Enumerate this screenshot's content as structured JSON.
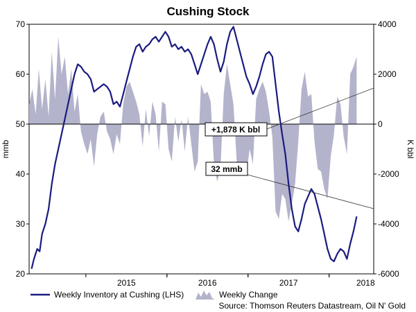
{
  "chart_data": {
    "type": "line",
    "title": "Cushing Stock",
    "left_axis": {
      "label": "mmb",
      "range": [
        20,
        70
      ],
      "ticks": [
        "20",
        "30",
        "40",
        "50",
        "60",
        "70"
      ]
    },
    "right_axis": {
      "label": "K bbl",
      "range": [
        -6000,
        4000
      ],
      "ticks": [
        "-6000",
        "-4000",
        "-2000",
        "0",
        "2000",
        "4000"
      ]
    },
    "x_axis": {
      "labels": [
        "2015",
        "2016",
        "2017",
        "2018"
      ],
      "range_years": [
        2014.3,
        2018.55
      ]
    },
    "series": [
      {
        "name": "Weekly Inventory at Cushing (LHS)",
        "axis": "left",
        "color": "#1a1a80",
        "points": [
          [
            2014.33,
            21.0
          ],
          [
            2014.36,
            23.0
          ],
          [
            2014.4,
            25.0
          ],
          [
            2014.43,
            24.5
          ],
          [
            2014.46,
            28.0
          ],
          [
            2014.5,
            30.0
          ],
          [
            2014.54,
            33.0
          ],
          [
            2014.58,
            38.0
          ],
          [
            2014.62,
            42.0
          ],
          [
            2014.66,
            45.0
          ],
          [
            2014.7,
            48.0
          ],
          [
            2014.74,
            51.0
          ],
          [
            2014.78,
            54.0
          ],
          [
            2014.82,
            57.0
          ],
          [
            2014.86,
            60.0
          ],
          [
            2014.9,
            62.0
          ],
          [
            2014.94,
            61.5
          ],
          [
            2014.98,
            60.5
          ],
          [
            2015.02,
            60.0
          ],
          [
            2015.06,
            59.0
          ],
          [
            2015.1,
            56.5
          ],
          [
            2015.14,
            57.0
          ],
          [
            2015.18,
            57.5
          ],
          [
            2015.22,
            58.0
          ],
          [
            2015.26,
            57.5
          ],
          [
            2015.3,
            56.5
          ],
          [
            2015.34,
            54.0
          ],
          [
            2015.38,
            54.5
          ],
          [
            2015.42,
            53.5
          ],
          [
            2015.46,
            56.0
          ],
          [
            2015.5,
            58.5
          ],
          [
            2015.54,
            61.0
          ],
          [
            2015.58,
            63.5
          ],
          [
            2015.62,
            65.5
          ],
          [
            2015.66,
            66.0
          ],
          [
            2015.7,
            64.5
          ],
          [
            2015.74,
            65.5
          ],
          [
            2015.78,
            66.0
          ],
          [
            2015.82,
            67.0
          ],
          [
            2015.86,
            67.5
          ],
          [
            2015.9,
            66.5
          ],
          [
            2015.94,
            67.5
          ],
          [
            2015.98,
            68.5
          ],
          [
            2016.02,
            67.5
          ],
          [
            2016.06,
            65.5
          ],
          [
            2016.1,
            66.0
          ],
          [
            2016.14,
            65.0
          ],
          [
            2016.18,
            65.5
          ],
          [
            2016.22,
            64.5
          ],
          [
            2016.26,
            65.0
          ],
          [
            2016.3,
            64.0
          ],
          [
            2016.34,
            62.0
          ],
          [
            2016.38,
            60.0
          ],
          [
            2016.42,
            62.0
          ],
          [
            2016.46,
            64.0
          ],
          [
            2016.5,
            66.0
          ],
          [
            2016.54,
            67.5
          ],
          [
            2016.58,
            66.0
          ],
          [
            2016.62,
            63.0
          ],
          [
            2016.66,
            60.5
          ],
          [
            2016.7,
            62.5
          ],
          [
            2016.74,
            66.0
          ],
          [
            2016.78,
            68.5
          ],
          [
            2016.82,
            69.5
          ],
          [
            2016.86,
            67.0
          ],
          [
            2016.9,
            64.5
          ],
          [
            2016.94,
            62.0
          ],
          [
            2016.98,
            59.5
          ],
          [
            2017.02,
            58.0
          ],
          [
            2017.06,
            56.0
          ],
          [
            2017.1,
            57.5
          ],
          [
            2017.14,
            59.5
          ],
          [
            2017.18,
            62.0
          ],
          [
            2017.22,
            64.0
          ],
          [
            2017.26,
            64.5
          ],
          [
            2017.3,
            63.5
          ],
          [
            2017.34,
            58.0
          ],
          [
            2017.38,
            52.5
          ],
          [
            2017.42,
            48.0
          ],
          [
            2017.46,
            44.0
          ],
          [
            2017.5,
            38.0
          ],
          [
            2017.54,
            33.0
          ],
          [
            2017.58,
            29.5
          ],
          [
            2017.62,
            28.5
          ],
          [
            2017.66,
            31.0
          ],
          [
            2017.7,
            34.0
          ],
          [
            2017.74,
            35.5
          ],
          [
            2017.78,
            37.0
          ],
          [
            2017.82,
            36.0
          ],
          [
            2017.86,
            33.5
          ],
          [
            2017.9,
            31.0
          ],
          [
            2017.94,
            28.0
          ],
          [
            2017.98,
            25.0
          ],
          [
            2018.02,
            23.0
          ],
          [
            2018.06,
            22.5
          ],
          [
            2018.1,
            24.0
          ],
          [
            2018.14,
            25.0
          ],
          [
            2018.18,
            24.5
          ],
          [
            2018.22,
            23.0
          ],
          [
            2018.26,
            26.0
          ],
          [
            2018.3,
            28.5
          ],
          [
            2018.34,
            31.5
          ]
        ]
      },
      {
        "name": "Weekly Change",
        "axis": "right",
        "color": "#b3b3cc",
        "points": [
          [
            2014.3,
            800
          ],
          [
            2014.34,
            1400
          ],
          [
            2014.38,
            400
          ],
          [
            2014.42,
            2200
          ],
          [
            2014.46,
            600
          ],
          [
            2014.5,
            1800
          ],
          [
            2014.54,
            300
          ],
          [
            2014.58,
            2900
          ],
          [
            2014.62,
            1000
          ],
          [
            2014.66,
            3500
          ],
          [
            2014.7,
            2000
          ],
          [
            2014.74,
            2700
          ],
          [
            2014.78,
            1200
          ],
          [
            2014.82,
            2200
          ],
          [
            2014.86,
            500
          ],
          [
            2014.9,
            1200
          ],
          [
            2014.94,
            -300
          ],
          [
            2014.98,
            -800
          ],
          [
            2015.02,
            -1200
          ],
          [
            2015.06,
            -600
          ],
          [
            2015.1,
            -1700
          ],
          [
            2015.14,
            -400
          ],
          [
            2015.18,
            300
          ],
          [
            2015.22,
            500
          ],
          [
            2015.26,
            -300
          ],
          [
            2015.3,
            -600
          ],
          [
            2015.34,
            -1200
          ],
          [
            2015.38,
            -400
          ],
          [
            2015.42,
            -800
          ],
          [
            2015.46,
            800
          ],
          [
            2015.5,
            1500
          ],
          [
            2015.54,
            1700
          ],
          [
            2015.58,
            1300
          ],
          [
            2015.62,
            900
          ],
          [
            2015.66,
            400
          ],
          [
            2015.7,
            -900
          ],
          [
            2015.74,
            600
          ],
          [
            2015.78,
            -500
          ],
          [
            2015.82,
            900
          ],
          [
            2015.86,
            400
          ],
          [
            2015.9,
            -1100
          ],
          [
            2015.94,
            900
          ],
          [
            2015.98,
            800
          ],
          [
            2016.02,
            -1000
          ],
          [
            2016.06,
            -1500
          ],
          [
            2016.1,
            300
          ],
          [
            2016.14,
            -700
          ],
          [
            2016.18,
            200
          ],
          [
            2016.22,
            -1100
          ],
          [
            2016.26,
            300
          ],
          [
            2016.3,
            -800
          ],
          [
            2016.34,
            -1900
          ],
          [
            2016.38,
            -1500
          ],
          [
            2016.42,
            1600
          ],
          [
            2016.46,
            1200
          ],
          [
            2016.5,
            1300
          ],
          [
            2016.54,
            900
          ],
          [
            2016.58,
            -1600
          ],
          [
            2016.62,
            -2300
          ],
          [
            2016.66,
            -1800
          ],
          [
            2016.7,
            1200
          ],
          [
            2016.74,
            2400
          ],
          [
            2016.78,
            1600
          ],
          [
            2016.82,
            800
          ],
          [
            2016.86,
            -1500
          ],
          [
            2016.9,
            -1800
          ],
          [
            2016.94,
            -1600
          ],
          [
            2016.98,
            -2000
          ],
          [
            2017.02,
            -1000
          ],
          [
            2017.06,
            -1600
          ],
          [
            2017.1,
            1000
          ],
          [
            2017.14,
            1400
          ],
          [
            2017.18,
            1700
          ],
          [
            2017.22,
            1300
          ],
          [
            2017.26,
            500
          ],
          [
            2017.3,
            -500
          ],
          [
            2017.34,
            -3500
          ],
          [
            2017.38,
            -3800
          ],
          [
            2017.42,
            -2800
          ],
          [
            2017.46,
            -3000
          ],
          [
            2017.5,
            -3900
          ],
          [
            2017.54,
            -3200
          ],
          [
            2017.58,
            -2400
          ],
          [
            2017.62,
            -700
          ],
          [
            2017.66,
            1400
          ],
          [
            2017.7,
            2100
          ],
          [
            2017.74,
            1100
          ],
          [
            2017.78,
            1200
          ],
          [
            2017.82,
            -700
          ],
          [
            2017.86,
            -1800
          ],
          [
            2017.9,
            -1900
          ],
          [
            2017.94,
            -2600
          ],
          [
            2017.98,
            -3000
          ],
          [
            2018.02,
            -1300
          ],
          [
            2018.06,
            -400
          ],
          [
            2018.1,
            1100
          ],
          [
            2018.14,
            800
          ],
          [
            2018.18,
            -500
          ],
          [
            2018.22,
            -1200
          ],
          [
            2018.26,
            2000
          ],
          [
            2018.3,
            2300
          ],
          [
            2018.34,
            2700
          ]
        ]
      }
    ],
    "annotations": [
      {
        "id": "weekly-change",
        "text": "+1,878 K bbl"
      },
      {
        "id": "inventory",
        "text": "32 mmb"
      }
    ],
    "source": "Source: Thomson Reuters Datastream, Oil N' Gold"
  }
}
